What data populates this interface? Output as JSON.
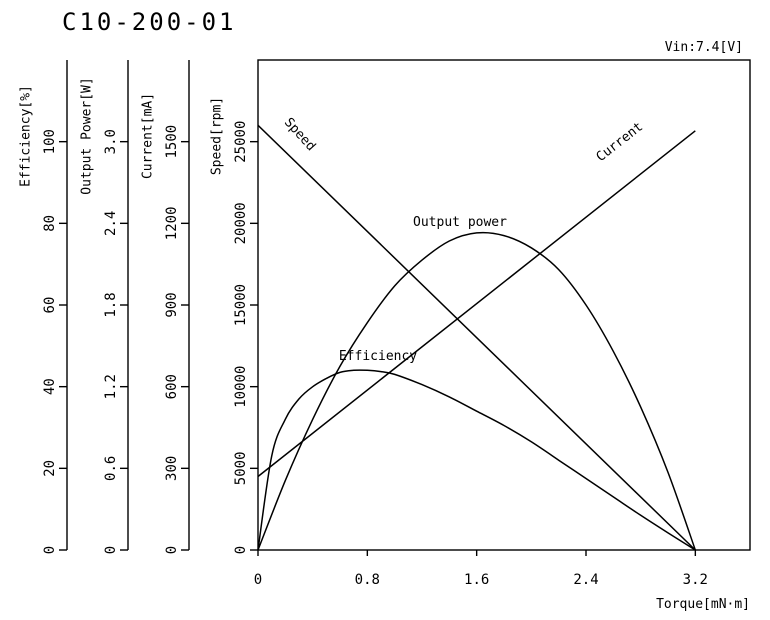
{
  "chart_data": {
    "type": "line",
    "title": "C10-200-01",
    "subtitle": "Vin:7.4[V]",
    "xlabel": "Torque[mN·m]",
    "xlim": [
      0,
      3.6
    ],
    "x_ticks": [
      "0",
      "0.8",
      "1.6",
      "2.4",
      "3.2"
    ],
    "x_tick_values": [
      0,
      0.8,
      1.6,
      2.4,
      3.2
    ],
    "y_axes": [
      {
        "key": "efficiency",
        "label": "Efficiency[%]",
        "ylim": [
          0,
          120
        ],
        "ticks": [
          "0",
          "20",
          "40",
          "60",
          "80",
          "100"
        ],
        "tick_values": [
          0,
          20,
          40,
          60,
          80,
          100
        ]
      },
      {
        "key": "output_power",
        "label": "Output Power[W]",
        "ylim": [
          0,
          3.6
        ],
        "ticks": [
          "0",
          "0.6",
          "1.2",
          "1.8",
          "2.4",
          "3.0"
        ],
        "tick_values": [
          0,
          0.6,
          1.2,
          1.8,
          2.4,
          3.0
        ]
      },
      {
        "key": "current",
        "label": "Current[mA]",
        "ylim": [
          0,
          1800
        ],
        "ticks": [
          "0",
          "300",
          "600",
          "900",
          "1200",
          "1500"
        ],
        "tick_values": [
          0,
          300,
          600,
          900,
          1200,
          1500
        ]
      },
      {
        "key": "speed",
        "label": "Speed[rpm]",
        "ylim": [
          0,
          30000
        ],
        "ticks": [
          "0",
          "5000",
          "10000",
          "15000",
          "20000",
          "25000"
        ],
        "tick_values": [
          0,
          5000,
          10000,
          15000,
          20000,
          25000
        ]
      }
    ],
    "series": [
      {
        "name": "Speed",
        "axis": "speed",
        "x": [
          0,
          3.2
        ],
        "y": [
          26000,
          0
        ]
      },
      {
        "name": "Current",
        "axis": "current",
        "x": [
          0,
          3.2
        ],
        "y": [
          270,
          1540
        ]
      },
      {
        "name": "Output power",
        "axis": "output_power",
        "x": [
          0,
          0.2,
          0.4,
          0.6,
          0.8,
          1.0,
          1.2,
          1.4,
          1.6,
          1.8,
          2.0,
          2.2,
          2.4,
          2.6,
          2.8,
          3.0,
          3.2
        ],
        "y": [
          0,
          0.51,
          0.96,
          1.35,
          1.67,
          1.94,
          2.13,
          2.27,
          2.33,
          2.31,
          2.22,
          2.06,
          1.8,
          1.46,
          1.05,
          0.57,
          0
        ]
      },
      {
        "name": "Efficiency",
        "axis": "efficiency",
        "x": [
          0,
          0.1,
          0.2,
          0.3,
          0.4,
          0.5,
          0.6,
          0.7,
          0.8,
          0.9,
          1.0,
          1.2,
          1.4,
          1.6,
          1.8,
          2.0,
          2.2,
          2.4,
          2.6,
          2.8,
          3.0,
          3.2
        ],
        "y": [
          0,
          23,
          32,
          37,
          40,
          42,
          43.5,
          44,
          44,
          43.7,
          43,
          40.5,
          37.5,
          34,
          30.5,
          26.5,
          22,
          17.5,
          13,
          8.5,
          4.2,
          0
        ]
      }
    ],
    "grid": false,
    "legend": "none"
  }
}
